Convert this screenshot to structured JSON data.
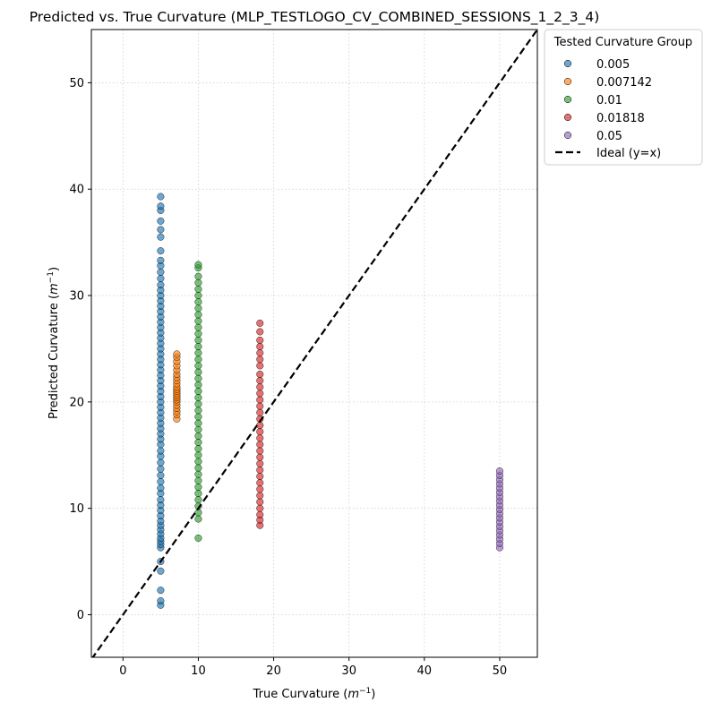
{
  "chart_data": {
    "type": "scatter",
    "title": "Predicted vs. True Curvature (MLP_TESTLOGO_CV_COMBINED_SESSIONS_1_2_3_4)",
    "xlabel": "True Curvature (m⁻¹)",
    "ylabel": "Predicted Curvature (m⁻¹)",
    "xlim": [
      -4.2,
      55
    ],
    "ylim": [
      -4,
      55
    ],
    "xticks": [
      0,
      10,
      20,
      30,
      40,
      50
    ],
    "yticks": [
      0,
      10,
      20,
      30,
      40,
      50
    ],
    "grid": true,
    "legend_title": "Tested Curvature Group",
    "legend_position": "outside-top-right",
    "ideal_line_label": "Ideal (y=x)",
    "series": [
      {
        "name": "0.005",
        "color": "#1f77b4",
        "x": 5.0,
        "y": [
          0.9,
          1.3,
          2.3,
          4.1,
          5.0,
          6.3,
          6.6,
          6.9,
          7.2,
          7.6,
          8.0,
          8.4,
          8.8,
          9.3,
          9.8,
          10.3,
          10.8,
          11.4,
          11.9,
          12.5,
          13.1,
          13.7,
          14.3,
          14.9,
          15.4,
          16.0,
          16.5,
          17.0,
          17.5,
          18.0,
          18.5,
          19.0,
          19.5,
          20.0,
          20.5,
          21.0,
          21.5,
          22.0,
          22.5,
          23.0,
          23.5,
          24.0,
          24.5,
          25.0,
          25.5,
          26.0,
          26.5,
          27.0,
          27.5,
          28.0,
          28.5,
          29.0,
          29.5,
          30.0,
          30.5,
          31.0,
          31.6,
          32.2,
          32.8,
          33.3,
          34.2,
          35.5,
          36.2,
          37.0,
          38.0,
          38.4,
          39.3
        ]
      },
      {
        "name": "0.007142",
        "color": "#ff7f0e",
        "x": 7.142,
        "y": [
          18.4,
          18.8,
          19.1,
          19.4,
          19.7,
          20.0,
          20.2,
          20.4,
          20.6,
          20.8,
          21.0,
          21.2,
          21.4,
          21.7,
          22.0,
          22.3,
          22.6,
          23.0,
          23.4,
          23.8,
          24.2,
          24.5
        ]
      },
      {
        "name": "0.01",
        "color": "#2ca02c",
        "x": 10.0,
        "y": [
          7.2,
          9.0,
          9.6,
          10.2,
          10.8,
          11.4,
          12.0,
          12.6,
          13.2,
          13.8,
          14.4,
          15.0,
          15.6,
          16.2,
          16.8,
          17.4,
          18.0,
          18.6,
          19.2,
          19.8,
          20.4,
          21.0,
          21.6,
          22.2,
          22.8,
          23.4,
          24.0,
          24.6,
          25.2,
          25.8,
          26.4,
          27.0,
          27.6,
          28.2,
          28.8,
          29.4,
          30.0,
          30.6,
          31.2,
          31.8,
          32.6,
          32.9
        ]
      },
      {
        "name": "0.01818",
        "color": "#d62728",
        "x": 18.18,
        "y": [
          8.4,
          8.9,
          9.4,
          10.0,
          10.6,
          11.2,
          11.8,
          12.4,
          13.0,
          13.6,
          14.2,
          14.8,
          15.4,
          16.0,
          16.6,
          17.2,
          17.8,
          18.4,
          19.0,
          19.6,
          20.2,
          20.8,
          21.4,
          22.0,
          22.6,
          23.4,
          24.0,
          24.6,
          25.2,
          25.8,
          26.6,
          27.4
        ]
      },
      {
        "name": "0.05",
        "color": "#9467bd",
        "x": 50.0,
        "y": [
          6.3,
          6.7,
          7.1,
          7.5,
          7.9,
          8.3,
          8.7,
          9.1,
          9.5,
          9.9,
          10.3,
          10.7,
          11.1,
          11.5,
          11.9,
          12.3,
          12.7,
          13.1,
          13.5
        ]
      }
    ]
  }
}
